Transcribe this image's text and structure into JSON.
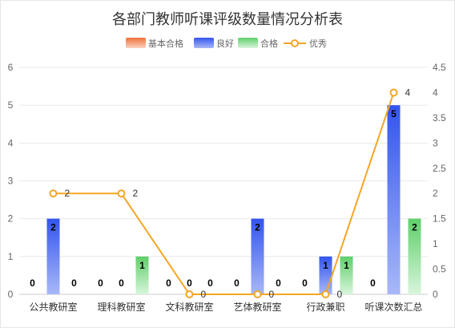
{
  "chart_data": {
    "type": "bar",
    "title": "各部门教师听课评级数量情况分析表",
    "categories": [
      "公共教研室",
      "理科教研室",
      "文科教研室",
      "艺体教研室",
      "行政兼职",
      "听课次数汇总"
    ],
    "series": [
      {
        "name": "基本合格",
        "type": "bar",
        "axis": "left",
        "color": "#f0703a",
        "values": [
          0,
          0,
          0,
          0,
          0,
          0
        ]
      },
      {
        "name": "良好",
        "type": "bar",
        "axis": "left",
        "color": "#3355ee",
        "values": [
          2,
          0,
          0,
          2,
          1,
          5
        ]
      },
      {
        "name": "合格",
        "type": "bar",
        "axis": "left",
        "color": "#5fcf6a",
        "values": [
          0,
          1,
          0,
          0,
          1,
          2
        ]
      },
      {
        "name": "优秀",
        "type": "line",
        "axis": "right",
        "color": "#f5a623",
        "values": [
          2,
          2,
          0,
          0,
          0,
          4
        ]
      }
    ],
    "y_left": {
      "min": 0,
      "max": 6,
      "ticks": [
        "0",
        "1",
        "2",
        "3",
        "4",
        "5",
        "6"
      ]
    },
    "y_right": {
      "min": 0,
      "max": 4.5,
      "ticks": [
        "0",
        "0.5",
        "1",
        "1.5",
        "2",
        "2.5",
        "3",
        "3.5",
        "4",
        "4.5"
      ]
    },
    "grid": true,
    "legend": "top-center"
  }
}
